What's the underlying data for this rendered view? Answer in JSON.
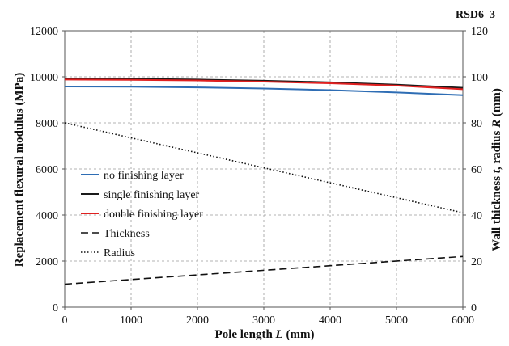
{
  "chart_data": {
    "type": "line",
    "tag": "RSD6_3",
    "xlabel": {
      "main": "Pole length ",
      "italic": "L",
      "unit": " (mm)"
    },
    "ylabel_left": "Replacement flexural modulus (MPa)",
    "ylabel_right": {
      "p1": "Wall thickness ",
      "i1": "t",
      "p2": ", radius ",
      "i2": "R",
      "p3": " (mm)"
    },
    "xlim": [
      0,
      6000
    ],
    "ylim_left": [
      0,
      12000
    ],
    "ylim_right": [
      0,
      120
    ],
    "x_ticks": [
      "0",
      "1000",
      "2000",
      "3000",
      "4000",
      "5000",
      "6000"
    ],
    "y_ticks_left": [
      "0",
      "2000",
      "4000",
      "6000",
      "8000",
      "10000",
      "12000"
    ],
    "y_ticks_right": [
      "0",
      "20",
      "40",
      "60",
      "80",
      "100",
      "120"
    ],
    "grid": true,
    "legend_position": "center-left",
    "series": [
      {
        "name": "no finishing layer",
        "axis": "left",
        "color": "#2e6db4",
        "style": "solid",
        "x": [
          0,
          1000,
          2000,
          3000,
          4000,
          5000,
          6000
        ],
        "y": [
          9580,
          9570,
          9540,
          9490,
          9420,
          9320,
          9200
        ]
      },
      {
        "name": "single finishing layer",
        "axis": "left",
        "color": "#1a1a1a",
        "style": "solid",
        "x": [
          0,
          1000,
          2000,
          3000,
          4000,
          5000,
          6000
        ],
        "y": [
          9920,
          9910,
          9880,
          9830,
          9760,
          9660,
          9520
        ]
      },
      {
        "name": "double finishing layer",
        "axis": "left",
        "color": "#e02020",
        "style": "solid",
        "x": [
          0,
          1000,
          2000,
          3000,
          4000,
          5000,
          6000
        ],
        "y": [
          9880,
          9870,
          9840,
          9790,
          9720,
          9620,
          9460
        ]
      },
      {
        "name": "Thickness",
        "axis": "right",
        "color": "#111111",
        "style": "dashed",
        "x": [
          0,
          6000
        ],
        "y": [
          10,
          22
        ]
      },
      {
        "name": "Radius",
        "axis": "right",
        "color": "#111111",
        "style": "dotted",
        "x": [
          0,
          6000
        ],
        "y": [
          80,
          41
        ]
      }
    ]
  }
}
